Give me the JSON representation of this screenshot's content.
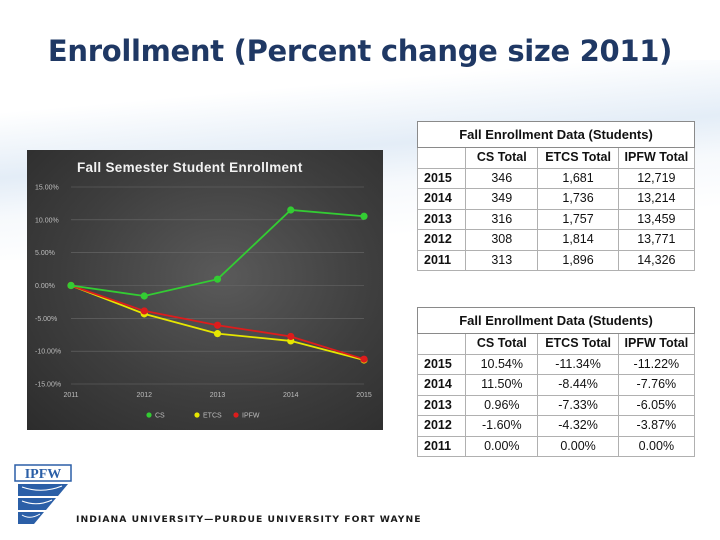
{
  "slide": {
    "title": "Enrollment (Percent change size 2011)",
    "footer": "INDIANA UNIVERSITY—PURDUE UNIVERSITY FORT WAYNE",
    "logo_text": "IPFW"
  },
  "colors": {
    "title": "#1f3864",
    "cs": "#33cc33",
    "etcs": "#e6e600",
    "ipfw": "#dd1c1c",
    "logo": "#2b5fa7"
  },
  "chart_data": {
    "type": "line",
    "title": "Fall Semester Student Enrollment",
    "x": [
      "2011",
      "2012",
      "2013",
      "2014",
      "2015"
    ],
    "ylim": [
      -15,
      15
    ],
    "yticks": [
      "15.00%",
      "10.00%",
      "5.00%",
      "0.00%",
      "-5.00%",
      "-10.00%",
      "-15.00%"
    ],
    "ytick_values": [
      15,
      10,
      5,
      0,
      -5,
      -10,
      -15
    ],
    "grid": true,
    "legend": "bottom",
    "series": [
      {
        "name": "CS",
        "color": "#33cc33",
        "values": [
          0.0,
          -1.6,
          0.96,
          11.5,
          10.54
        ]
      },
      {
        "name": "ETCS",
        "color": "#e6e600",
        "values": [
          0.0,
          -4.32,
          -7.33,
          -8.44,
          -11.34
        ]
      },
      {
        "name": "IPFW",
        "color": "#dd1c1c",
        "values": [
          0.0,
          -3.87,
          -6.05,
          -7.76,
          -11.22
        ]
      }
    ]
  },
  "tables": [
    {
      "caption": "Fall Enrollment Data (Students)",
      "headers": [
        "",
        "CS Total",
        "ETCS Total",
        "IPFW Total"
      ],
      "rows": [
        [
          "2015",
          "346",
          "1,681",
          "12,719"
        ],
        [
          "2014",
          "349",
          "1,736",
          "13,214"
        ],
        [
          "2013",
          "316",
          "1,757",
          "13,459"
        ],
        [
          "2012",
          "308",
          "1,814",
          "13,771"
        ],
        [
          "2011",
          "313",
          "1,896",
          "14,326"
        ]
      ]
    },
    {
      "caption": "Fall Enrollment Data (Students)",
      "headers": [
        "",
        "CS Total",
        "ETCS Total",
        "IPFW Total"
      ],
      "rows": [
        [
          "2015",
          "10.54%",
          "-11.34%",
          "-11.22%"
        ],
        [
          "2014",
          "11.50%",
          "-8.44%",
          "-7.76%"
        ],
        [
          "2013",
          "0.96%",
          "-7.33%",
          "-6.05%"
        ],
        [
          "2012",
          "-1.60%",
          "-4.32%",
          "-3.87%"
        ],
        [
          "2011",
          "0.00%",
          "0.00%",
          "0.00%"
        ]
      ]
    }
  ]
}
